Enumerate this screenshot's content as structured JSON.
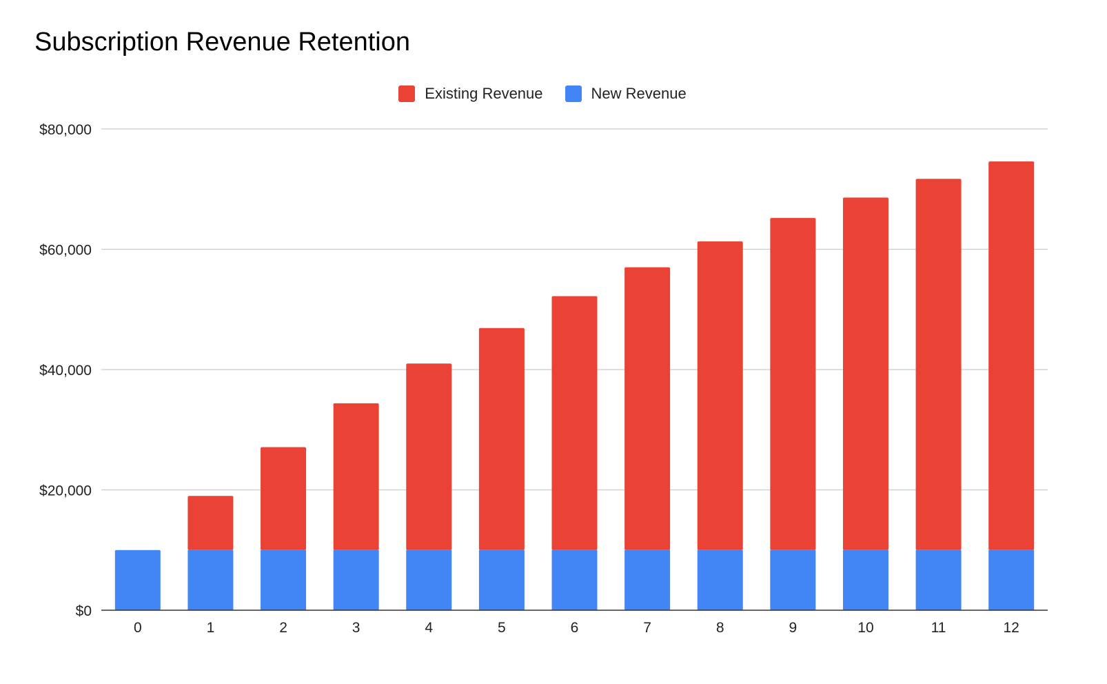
{
  "chart_data": {
    "type": "bar",
    "stacked": true,
    "title": "Subscription Revenue Retention",
    "xlabel": "",
    "ylabel": "",
    "categories": [
      "0",
      "1",
      "2",
      "3",
      "4",
      "5",
      "6",
      "7",
      "8",
      "9",
      "10",
      "11",
      "12"
    ],
    "series": [
      {
        "name": "New Revenue",
        "color": "#4285F4",
        "values": [
          10000,
          10000,
          10000,
          10000,
          10000,
          10000,
          10000,
          10000,
          10000,
          10000,
          10000,
          10000,
          10000
        ]
      },
      {
        "name": "Existing Revenue",
        "color": "#EA4335",
        "values": [
          0,
          9000,
          17100,
          24400,
          31000,
          36900,
          42200,
          47000,
          51300,
          55200,
          58600,
          61700,
          64600
        ]
      }
    ],
    "legend_order": [
      "Existing Revenue",
      "New Revenue"
    ],
    "legend_position": "top-center",
    "ylim": [
      0,
      80000
    ],
    "yticks": [
      0,
      20000,
      40000,
      60000,
      80000
    ],
    "ytick_labels": [
      "$0",
      "$20,000",
      "$40,000",
      "$60,000",
      "$80,000"
    ],
    "grid": true
  }
}
